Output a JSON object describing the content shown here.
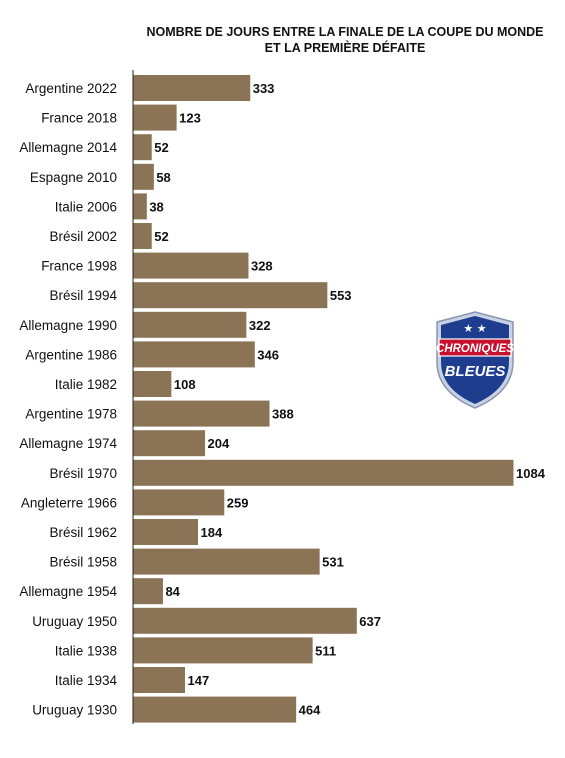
{
  "chart_data": {
    "type": "bar",
    "orientation": "horizontal",
    "title": "NOMBRE DE JOURS ENTRE LA FINALE DE LA COUPE DU MONDE",
    "subtitle": "ET LA PREMIÈRE DÉFAITE",
    "categories": [
      "Argentine 2022",
      "France 2018",
      "Allemagne 2014",
      "Espagne 2010",
      "Italie 2006",
      "Brésil 2002",
      "France 1998",
      "Brésil 1994",
      "Allemagne 1990",
      "Argentine 1986",
      "Italie 1982",
      "Argentine 1978",
      "Allemagne 1974",
      "Brésil 1970",
      "Angleterre 1966",
      "Brésil 1962",
      "Brésil 1958",
      "Allemagne 1954",
      "Uruguay 1950",
      "Italie 1938",
      "Italie 1934",
      "Uruguay 1930"
    ],
    "values": [
      333,
      123,
      52,
      58,
      38,
      52,
      328,
      553,
      322,
      346,
      108,
      388,
      204,
      1084,
      259,
      184,
      531,
      84,
      637,
      511,
      147,
      464
    ],
    "xlim": [
      0,
      1084
    ],
    "bar_color": "#8b7355",
    "grid": false,
    "data_labels": true
  },
  "logo": {
    "line1": "CHRONIQUES",
    "line2": "BLEUES",
    "primary_color": "#1f3d8f",
    "accent_color": "#c8102e"
  }
}
